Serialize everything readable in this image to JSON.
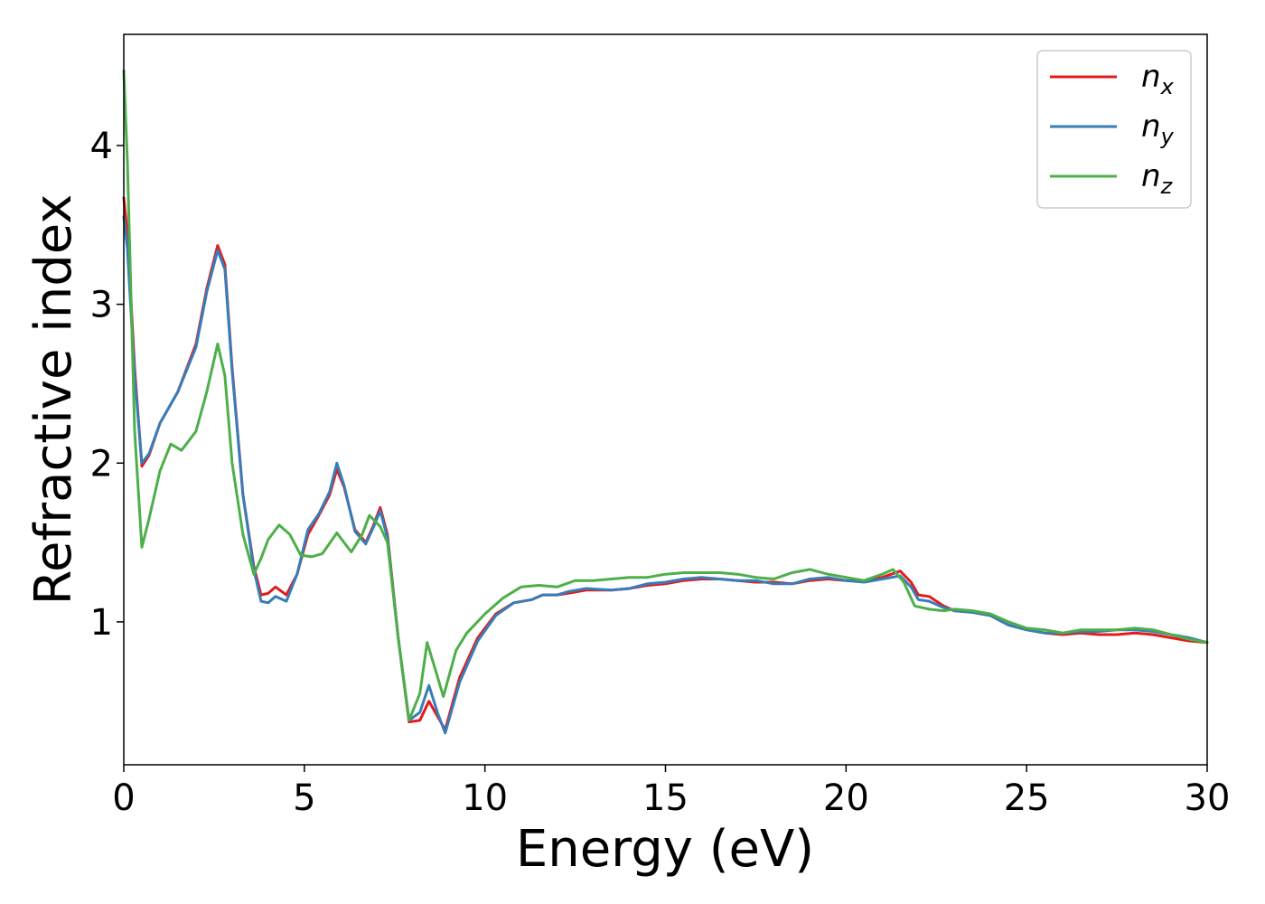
{
  "chart_data": {
    "type": "line",
    "title": "",
    "xlabel": "Energy (eV)",
    "ylabel": "Refractive index",
    "xlim": [
      0,
      30
    ],
    "ylim": [
      0.1,
      4.7
    ],
    "xticks": [
      0,
      5,
      10,
      15,
      20,
      25,
      30
    ],
    "yticks": [
      1,
      2,
      3,
      4
    ],
    "grid": false,
    "legend_position": "top-right",
    "series": [
      {
        "name": "n",
        "subscript": "x",
        "color": "#e41a1c",
        "points": [
          [
            0,
            3.67
          ],
          [
            0.1,
            3.45
          ],
          [
            0.3,
            2.6
          ],
          [
            0.5,
            1.98
          ],
          [
            0.7,
            2.05
          ],
          [
            1.0,
            2.25
          ],
          [
            1.5,
            2.45
          ],
          [
            2.0,
            2.75
          ],
          [
            2.3,
            3.1
          ],
          [
            2.6,
            3.37
          ],
          [
            2.8,
            3.25
          ],
          [
            3.0,
            2.6
          ],
          [
            3.3,
            1.8
          ],
          [
            3.6,
            1.35
          ],
          [
            3.8,
            1.17
          ],
          [
            4.0,
            1.18
          ],
          [
            4.2,
            1.22
          ],
          [
            4.5,
            1.17
          ],
          [
            4.8,
            1.3
          ],
          [
            5.1,
            1.55
          ],
          [
            5.4,
            1.67
          ],
          [
            5.7,
            1.8
          ],
          [
            5.9,
            1.96
          ],
          [
            6.1,
            1.85
          ],
          [
            6.4,
            1.58
          ],
          [
            6.7,
            1.5
          ],
          [
            6.9,
            1.6
          ],
          [
            7.1,
            1.72
          ],
          [
            7.3,
            1.55
          ],
          [
            7.6,
            0.9
          ],
          [
            7.9,
            0.37
          ],
          [
            8.2,
            0.38
          ],
          [
            8.45,
            0.5
          ],
          [
            8.7,
            0.4
          ],
          [
            8.9,
            0.32
          ],
          [
            9.3,
            0.65
          ],
          [
            9.8,
            0.9
          ],
          [
            10.3,
            1.05
          ],
          [
            10.8,
            1.12
          ],
          [
            11.3,
            1.14
          ],
          [
            11.6,
            1.17
          ],
          [
            12.0,
            1.17
          ],
          [
            12.3,
            1.18
          ],
          [
            12.8,
            1.2
          ],
          [
            13.5,
            1.2
          ],
          [
            14.0,
            1.21
          ],
          [
            14.5,
            1.23
          ],
          [
            15.0,
            1.24
          ],
          [
            15.5,
            1.26
          ],
          [
            16.0,
            1.27
          ],
          [
            16.5,
            1.27
          ],
          [
            17.0,
            1.26
          ],
          [
            17.5,
            1.25
          ],
          [
            18.0,
            1.25
          ],
          [
            18.5,
            1.24
          ],
          [
            19.0,
            1.26
          ],
          [
            19.5,
            1.27
          ],
          [
            20.0,
            1.26
          ],
          [
            20.5,
            1.26
          ],
          [
            21.0,
            1.28
          ],
          [
            21.5,
            1.32
          ],
          [
            21.8,
            1.25
          ],
          [
            22.0,
            1.17
          ],
          [
            22.3,
            1.16
          ],
          [
            22.7,
            1.1
          ],
          [
            23.0,
            1.07
          ],
          [
            23.5,
            1.06
          ],
          [
            24.0,
            1.04
          ],
          [
            24.5,
            0.98
          ],
          [
            25.0,
            0.95
          ],
          [
            25.5,
            0.93
          ],
          [
            26.0,
            0.92
          ],
          [
            26.5,
            0.93
          ],
          [
            27.0,
            0.92
          ],
          [
            27.5,
            0.92
          ],
          [
            28.0,
            0.93
          ],
          [
            28.5,
            0.92
          ],
          [
            29.0,
            0.9
          ],
          [
            29.5,
            0.88
          ],
          [
            30.0,
            0.87
          ]
        ]
      },
      {
        "name": "n",
        "subscript": "y",
        "color": "#377eb8",
        "points": [
          [
            0,
            3.55
          ],
          [
            0.1,
            3.35
          ],
          [
            0.3,
            2.55
          ],
          [
            0.5,
            2.0
          ],
          [
            0.7,
            2.06
          ],
          [
            1.0,
            2.25
          ],
          [
            1.5,
            2.45
          ],
          [
            2.0,
            2.73
          ],
          [
            2.3,
            3.08
          ],
          [
            2.6,
            3.34
          ],
          [
            2.8,
            3.22
          ],
          [
            3.0,
            2.58
          ],
          [
            3.3,
            1.8
          ],
          [
            3.6,
            1.33
          ],
          [
            3.8,
            1.13
          ],
          [
            4.0,
            1.12
          ],
          [
            4.2,
            1.16
          ],
          [
            4.5,
            1.13
          ],
          [
            4.8,
            1.3
          ],
          [
            5.1,
            1.58
          ],
          [
            5.4,
            1.68
          ],
          [
            5.7,
            1.82
          ],
          [
            5.9,
            2.0
          ],
          [
            6.1,
            1.86
          ],
          [
            6.4,
            1.57
          ],
          [
            6.7,
            1.49
          ],
          [
            6.9,
            1.59
          ],
          [
            7.1,
            1.7
          ],
          [
            7.3,
            1.53
          ],
          [
            7.6,
            0.9
          ],
          [
            7.9,
            0.38
          ],
          [
            8.2,
            0.43
          ],
          [
            8.45,
            0.6
          ],
          [
            8.7,
            0.42
          ],
          [
            8.9,
            0.3
          ],
          [
            9.3,
            0.62
          ],
          [
            9.8,
            0.88
          ],
          [
            10.3,
            1.04
          ],
          [
            10.8,
            1.12
          ],
          [
            11.3,
            1.14
          ],
          [
            11.6,
            1.17
          ],
          [
            12.0,
            1.17
          ],
          [
            12.3,
            1.19
          ],
          [
            12.8,
            1.21
          ],
          [
            13.5,
            1.2
          ],
          [
            14.0,
            1.21
          ],
          [
            14.5,
            1.24
          ],
          [
            15.0,
            1.25
          ],
          [
            15.5,
            1.27
          ],
          [
            16.0,
            1.28
          ],
          [
            16.5,
            1.27
          ],
          [
            17.0,
            1.26
          ],
          [
            17.5,
            1.26
          ],
          [
            18.0,
            1.24
          ],
          [
            18.5,
            1.24
          ],
          [
            19.0,
            1.27
          ],
          [
            19.5,
            1.28
          ],
          [
            20.0,
            1.26
          ],
          [
            20.5,
            1.25
          ],
          [
            21.0,
            1.27
          ],
          [
            21.5,
            1.29
          ],
          [
            21.8,
            1.22
          ],
          [
            22.0,
            1.14
          ],
          [
            22.3,
            1.13
          ],
          [
            22.7,
            1.09
          ],
          [
            23.0,
            1.07
          ],
          [
            23.5,
            1.06
          ],
          [
            24.0,
            1.04
          ],
          [
            24.5,
            0.98
          ],
          [
            25.0,
            0.95
          ],
          [
            25.5,
            0.93
          ],
          [
            26.0,
            0.93
          ],
          [
            26.5,
            0.94
          ],
          [
            27.0,
            0.94
          ],
          [
            27.5,
            0.95
          ],
          [
            28.0,
            0.95
          ],
          [
            28.5,
            0.94
          ],
          [
            29.0,
            0.92
          ],
          [
            29.5,
            0.9
          ],
          [
            30.0,
            0.87
          ]
        ]
      },
      {
        "name": "n",
        "subscript": "z",
        "color": "#4daf4a",
        "points": [
          [
            0,
            4.47
          ],
          [
            0.1,
            3.9
          ],
          [
            0.3,
            2.2
          ],
          [
            0.5,
            1.47
          ],
          [
            0.7,
            1.65
          ],
          [
            1.0,
            1.95
          ],
          [
            1.3,
            2.12
          ],
          [
            1.6,
            2.08
          ],
          [
            2.0,
            2.2
          ],
          [
            2.3,
            2.45
          ],
          [
            2.6,
            2.75
          ],
          [
            2.8,
            2.55
          ],
          [
            3.0,
            2.0
          ],
          [
            3.3,
            1.55
          ],
          [
            3.6,
            1.3
          ],
          [
            3.8,
            1.4
          ],
          [
            4.0,
            1.52
          ],
          [
            4.3,
            1.61
          ],
          [
            4.6,
            1.55
          ],
          [
            4.9,
            1.42
          ],
          [
            5.2,
            1.41
          ],
          [
            5.5,
            1.43
          ],
          [
            5.9,
            1.56
          ],
          [
            6.1,
            1.5
          ],
          [
            6.3,
            1.44
          ],
          [
            6.6,
            1.55
          ],
          [
            6.8,
            1.67
          ],
          [
            7.1,
            1.6
          ],
          [
            7.3,
            1.5
          ],
          [
            7.6,
            0.9
          ],
          [
            7.9,
            0.38
          ],
          [
            8.2,
            0.55
          ],
          [
            8.4,
            0.87
          ],
          [
            8.6,
            0.72
          ],
          [
            8.85,
            0.53
          ],
          [
            9.2,
            0.82
          ],
          [
            9.5,
            0.93
          ],
          [
            10.0,
            1.05
          ],
          [
            10.5,
            1.15
          ],
          [
            11.0,
            1.22
          ],
          [
            11.5,
            1.23
          ],
          [
            12.0,
            1.22
          ],
          [
            12.5,
            1.26
          ],
          [
            13.0,
            1.26
          ],
          [
            13.5,
            1.27
          ],
          [
            14.0,
            1.28
          ],
          [
            14.5,
            1.28
          ],
          [
            15.0,
            1.3
          ],
          [
            15.5,
            1.31
          ],
          [
            16.0,
            1.31
          ],
          [
            16.5,
            1.31
          ],
          [
            17.0,
            1.3
          ],
          [
            17.5,
            1.28
          ],
          [
            18.0,
            1.27
          ],
          [
            18.5,
            1.31
          ],
          [
            19.0,
            1.33
          ],
          [
            19.5,
            1.3
          ],
          [
            20.0,
            1.28
          ],
          [
            20.5,
            1.26
          ],
          [
            21.0,
            1.3
          ],
          [
            21.3,
            1.33
          ],
          [
            21.6,
            1.25
          ],
          [
            21.9,
            1.1
          ],
          [
            22.3,
            1.08
          ],
          [
            22.7,
            1.07
          ],
          [
            23.0,
            1.08
          ],
          [
            23.5,
            1.07
          ],
          [
            24.0,
            1.05
          ],
          [
            24.5,
            1.0
          ],
          [
            25.0,
            0.96
          ],
          [
            25.5,
            0.95
          ],
          [
            26.0,
            0.93
          ],
          [
            26.5,
            0.95
          ],
          [
            27.0,
            0.95
          ],
          [
            27.5,
            0.95
          ],
          [
            28.0,
            0.96
          ],
          [
            28.5,
            0.95
          ],
          [
            29.0,
            0.92
          ],
          [
            29.5,
            0.89
          ],
          [
            30.0,
            0.87
          ]
        ]
      }
    ]
  }
}
